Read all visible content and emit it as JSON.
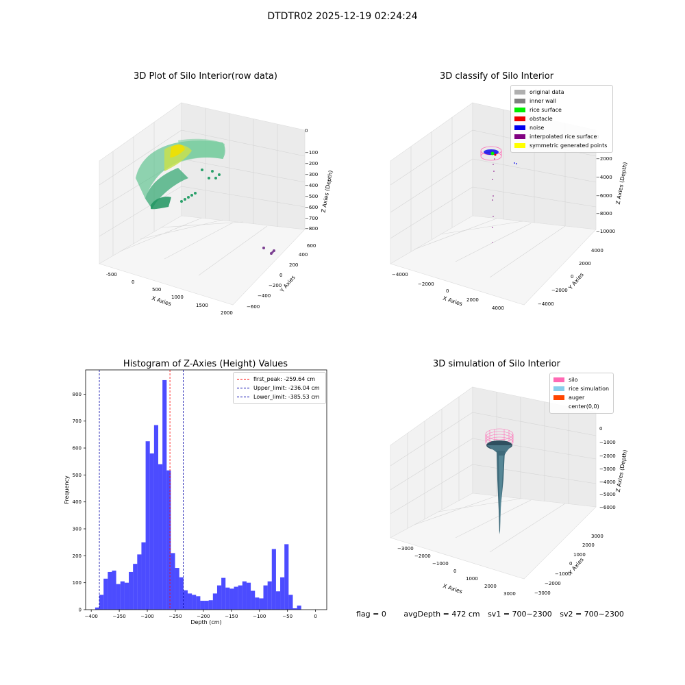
{
  "suptitle": "DTDTR02 2025-12-19 02:24:24",
  "panels": {
    "p1": {
      "title": "3D Plot of Silo Interior(row data)",
      "xlabel": "X Axies",
      "ylabel": "Y Axies",
      "zlabel": "Z Axies (Depth)",
      "xticks": [
        "-500",
        "0",
        "500",
        "1000",
        "1500",
        "2000"
      ],
      "yticks": [
        "600",
        "400",
        "200",
        "0",
        "−200",
        "−400",
        "−600"
      ],
      "zticks": [
        "0",
        "−100",
        "−200",
        "−300",
        "−400",
        "−500",
        "−600",
        "−700",
        "−800"
      ]
    },
    "p2": {
      "title": "3D classify of Silo Interior",
      "xlabel": "X Axies",
      "ylabel": "Y Axies",
      "zlabel": "Z Axies (Depth)",
      "xticks": [
        "−4000",
        "−2000",
        "0",
        "2000",
        "4000"
      ],
      "yticks": [
        "4000",
        "2000",
        "0",
        "−2000",
        "−4000"
      ],
      "zticks": [
        "0",
        "−2000",
        "−4000",
        "−6000",
        "−8000",
        "−10000"
      ],
      "legend": [
        {
          "label": "original data",
          "color": "#b0b0b0"
        },
        {
          "label": "inner wall",
          "color": "#808080"
        },
        {
          "label": "rice surface",
          "color": "#00ee00"
        },
        {
          "label": "obstacle",
          "color": "#ee0000"
        },
        {
          "label": "noise",
          "color": "#0000ee"
        },
        {
          "label": "interpolated rice surface",
          "color": "#800080"
        },
        {
          "label": "symmetric generated points",
          "color": "#ffff00"
        }
      ]
    },
    "p4": {
      "title": "3D simulation of Silo Interior",
      "xlabel": "X Axies",
      "ylabel": "Y Axies",
      "zlabel": "Z Axies (Depth)",
      "xticks": [
        "−3000",
        "−2000",
        "−1000",
        "0",
        "1000",
        "2000",
        "3000"
      ],
      "yticks": [
        "3000",
        "2000",
        "1000",
        "0",
        "−1000",
        "−2000",
        "−3000"
      ],
      "zticks": [
        "0",
        "−1000",
        "−2000",
        "−3000",
        "−4000",
        "−5000",
        "−6000"
      ],
      "legend": [
        {
          "label": "silo",
          "color": "#ff69b4"
        },
        {
          "label": "rice simulation",
          "color": "#87ceeb"
        },
        {
          "label": "auger",
          "color": "#ff4500"
        },
        {
          "label": "center(0,0)",
          "color": ""
        }
      ]
    }
  },
  "chart_data": [
    {
      "type": "scatter",
      "title": "3D Plot of Silo Interior(row data)",
      "xlabel": "X Axies",
      "ylabel": "Y Axies",
      "zlabel": "Z Axies (Depth)",
      "xlim": [
        -600,
        2000
      ],
      "ylim": [
        -600,
        600
      ],
      "zlim": [
        -800,
        0
      ]
    },
    {
      "type": "scatter",
      "title": "3D classify of Silo Interior",
      "xlabel": "X Axies",
      "ylabel": "Y Axies",
      "zlabel": "Z Axies (Depth)",
      "xlim": [
        -4500,
        4500
      ],
      "ylim": [
        -4500,
        4500
      ],
      "zlim": [
        -10000,
        0
      ]
    },
    {
      "type": "bar",
      "title": "Histogram of Z-Axies (Height) Values",
      "xlabel": "Depth (cm)",
      "ylabel": "Frequency",
      "xlim": [
        -410,
        20
      ],
      "ylim": [
        0,
        890
      ],
      "xticks": [
        -400,
        -350,
        -300,
        -250,
        -200,
        -150,
        -100,
        -50,
        0
      ],
      "yticks": [
        0,
        100,
        200,
        300,
        400,
        500,
        600,
        700,
        800
      ],
      "bin_start": -393,
      "bin_width": 7.5,
      "values": [
        8,
        55,
        115,
        140,
        145,
        95,
        105,
        100,
        140,
        170,
        205,
        250,
        625,
        580,
        685,
        540,
        852,
        517,
        210,
        155,
        120,
        72,
        60,
        55,
        50,
        33,
        33,
        35,
        60,
        90,
        118,
        82,
        78,
        85,
        90,
        105,
        100,
        70,
        45,
        42,
        90,
        105,
        225,
        68,
        120,
        243,
        55,
        5,
        15
      ],
      "bar_color": "#0000ff",
      "vlines": [
        {
          "label": "first_peak: -259.64 cm",
          "x": -259.64,
          "color": "#ff0000"
        },
        {
          "label": "Upper_limit: -236.04 cm",
          "x": -236.04,
          "color": "#0000aa"
        },
        {
          "label": "Lower_limit: -385.53 cm",
          "x": -385.53,
          "color": "#0000aa"
        }
      ],
      "legend_position": "top-right"
    },
    {
      "type": "area",
      "title": "3D simulation of Silo Interior",
      "xlabel": "X Axies",
      "ylabel": "Y Axies",
      "zlabel": "Z Axies (Depth)",
      "xlim": [
        -3500,
        3500
      ],
      "ylim": [
        -3500,
        3500
      ],
      "zlim": [
        -7000,
        0
      ]
    }
  ],
  "footer": {
    "flag": "flag = 0",
    "avg": "avgDepth = 472 cm",
    "sv1": "sv1 = 700~2300",
    "sv2": "sv2 = 700~2300"
  }
}
